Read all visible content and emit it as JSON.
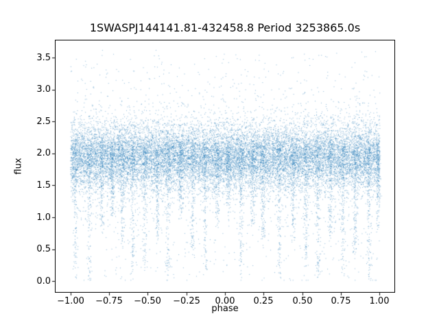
{
  "chart_data": {
    "type": "scatter",
    "title": "1SWASPJ144141.81-432458.8 Period 3253865.0s",
    "xlabel": "phase",
    "ylabel": "flux",
    "xlim": [
      -1.1,
      1.1
    ],
    "ylim": [
      -0.18,
      3.78
    ],
    "xticks": [
      -1.0,
      -0.75,
      -0.5,
      -0.25,
      0.0,
      0.25,
      0.5,
      0.75,
      1.0
    ],
    "xtick_labels": [
      "−1.00",
      "−0.75",
      "−0.50",
      "−0.25",
      "0.00",
      "0.25",
      "0.50",
      "0.75",
      "1.00"
    ],
    "yticks": [
      0.0,
      0.5,
      1.0,
      1.5,
      2.0,
      2.5,
      3.0,
      3.5
    ],
    "ytick_labels": [
      "0.0",
      "0.5",
      "1.0",
      "1.5",
      "2.0",
      "2.5",
      "3.0",
      "3.5"
    ],
    "point_color": "#1f77b4",
    "point_alpha": 0.55,
    "marker_size_px": 1,
    "grid": false,
    "legend": "none",
    "description": "Folded SuperWASP light curve: dense noisy flux band centered near 2.0 (roughly 1.4-2.6) across phase -1 to 1, with many narrow vertical streaks of points dropping toward flux 0 at quasi-regular phases, sparse upward outliers reaching flux 3.6 and sparse low outliers near 0.",
    "scatter_model": {
      "seed": 7,
      "n_base": 17000,
      "x_range": [
        -1.0,
        1.0
      ],
      "base_mean": 1.95,
      "base_std": 0.26,
      "down_tail_prob": 0.055,
      "down_tail_scale": 0.45,
      "up_tail_prob": 0.03,
      "up_tail_scale": 0.33,
      "streak_points": 150,
      "streak_width": 0.007,
      "streaks": [
        {
          "phase": -0.97,
          "depth": 2.0
        },
        {
          "phase": -0.88,
          "depth": 2.05
        },
        {
          "phase": -0.8,
          "depth": 1.3
        },
        {
          "phase": -0.73,
          "depth": 1.0
        },
        {
          "phase": -0.665,
          "depth": 1.5
        },
        {
          "phase": -0.6,
          "depth": 2.0
        },
        {
          "phase": -0.52,
          "depth": 1.9
        },
        {
          "phase": -0.44,
          "depth": 1.4
        },
        {
          "phase": -0.37,
          "depth": 2.05
        },
        {
          "phase": -0.29,
          "depth": 1.1
        },
        {
          "phase": -0.21,
          "depth": 1.6
        },
        {
          "phase": -0.13,
          "depth": 2.0
        },
        {
          "phase": -0.05,
          "depth": 1.2
        },
        {
          "phase": 0.02,
          "depth": 1.0
        },
        {
          "phase": 0.1,
          "depth": 2.05
        },
        {
          "phase": 0.175,
          "depth": 1.2
        },
        {
          "phase": 0.245,
          "depth": 1.5
        },
        {
          "phase": 0.35,
          "depth": 2.0
        },
        {
          "phase": 0.44,
          "depth": 1.5
        },
        {
          "phase": 0.52,
          "depth": 1.9
        },
        {
          "phase": 0.6,
          "depth": 2.0
        },
        {
          "phase": 0.68,
          "depth": 1.4
        },
        {
          "phase": 0.76,
          "depth": 2.0
        },
        {
          "phase": 0.84,
          "depth": 1.7
        },
        {
          "phase": 0.93,
          "depth": 2.05
        },
        {
          "phase": 0.99,
          "depth": 1.3
        }
      ],
      "n_top_outliers": 420,
      "n_low_outliers": 260,
      "y_min_clip": 0.02,
      "y_max_clip": 3.62
    }
  }
}
